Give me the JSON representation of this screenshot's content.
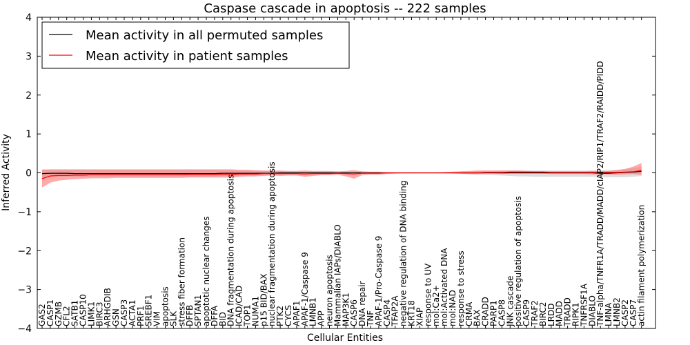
{
  "chart_data": {
    "type": "line",
    "title": "Caspase cascade in apoptosis -- 222 samples",
    "xlabel": "Cellular Entities",
    "ylabel": "Inferred Activity",
    "ylim": [
      -4,
      4
    ],
    "yticks": [
      -4,
      -3,
      -2,
      -1,
      0,
      1,
      2,
      3,
      4
    ],
    "grid": false,
    "legend_position": "top-left",
    "colors": {
      "permuted": "#000000",
      "patient": "#ff0000",
      "permuted_band": "#c8c8c8",
      "patient_band": "#ff7070"
    },
    "categories": [
      "GAS2",
      "CASP1",
      "GZMB",
      "CFL2",
      "SATB1",
      "CASP10",
      "LIMK1",
      "BIRC3",
      "ARHGDIB",
      "GSN",
      "CASP3",
      "ACTA1",
      "PRF1",
      "SREBF1",
      "VIM",
      "apoptosis",
      "SLK",
      "stress fiber formation",
      "DFFB",
      "SPTAN1",
      "apoptotic nuclear changes",
      "DFFA",
      "BID",
      "DNA fragmentation during apoptosis",
      "ICAD/CAD",
      "TOP1",
      "NUMA1",
      "p15 BID/BAX",
      "nuclear fragmentation during apoptosis",
      "PTK2",
      "CYCS",
      "APAF1",
      "APAF-1/Caspase 9",
      "LMNB1",
      "APP",
      "neuron apoptosis",
      "Mammalian IAPs/DIABLO",
      "MAP3K1",
      "CASP6",
      "DNA repair",
      "TNF",
      "APAF-1/Pro-Caspase 9",
      "CASP4",
      "TFAP2A",
      "negative regulation of DNA binding",
      "KRT18",
      "XIAP",
      "response to UV",
      "mol:Ca2+",
      "mol:Activated DNA",
      "mol:NAD",
      "response to stress",
      "CRMA",
      "BAX",
      "CRADD",
      "PARP1",
      "CASP8",
      "JNK cascade",
      "positive regulation of apoptosis",
      "CASP9",
      "TRAF2",
      "BIRC2",
      "LRDD",
      "MADD",
      "TRADD",
      "RIPK1",
      "TNFRSF1A",
      "DIABLO",
      "TNF-alpha/TNFR1A/TRADD/MADD/cIAP2/RIP1/TRAF2/RAIDD/PIDD",
      "LMNA",
      "LMNB2",
      "CASP2",
      "CASP7",
      "actin filament polymerization"
    ],
    "series": [
      {
        "name": "Mean activity in all permuted samples",
        "values": [
          -0.02,
          -0.01,
          -0.01,
          -0.01,
          -0.02,
          -0.02,
          -0.02,
          -0.02,
          -0.02,
          -0.02,
          -0.02,
          -0.02,
          -0.02,
          -0.02,
          -0.02,
          -0.02,
          -0.02,
          -0.02,
          -0.02,
          -0.02,
          -0.02,
          -0.02,
          -0.01,
          -0.01,
          -0.01,
          -0.01,
          -0.01,
          -0.01,
          -0.01,
          0,
          0,
          0,
          0,
          0,
          0,
          0,
          0,
          0,
          0,
          0,
          0,
          0,
          0,
          0,
          0,
          0,
          0,
          0,
          0,
          0,
          0,
          0,
          0,
          0,
          0,
          0,
          0,
          0,
          0,
          0,
          0,
          0,
          0,
          0,
          0,
          0,
          0,
          0,
          -0.01,
          -0.01,
          0,
          0.01,
          0.02,
          0.04
        ],
        "lower": [
          -0.14,
          -0.1,
          -0.1,
          -0.1,
          -0.1,
          -0.1,
          -0.1,
          -0.1,
          -0.1,
          -0.1,
          -0.1,
          -0.1,
          -0.1,
          -0.1,
          -0.1,
          -0.1,
          -0.1,
          -0.1,
          -0.1,
          -0.1,
          -0.09,
          -0.09,
          -0.08,
          -0.08,
          -0.07,
          -0.06,
          -0.06,
          -0.05,
          -0.04,
          -0.04,
          -0.03,
          -0.03,
          -0.03,
          -0.03,
          -0.03,
          -0.02,
          -0.02,
          -0.02,
          -0.02,
          -0.02,
          -0.02,
          -0.02,
          -0.01,
          -0.01,
          -0.01,
          -0.01,
          -0.01,
          -0.01,
          -0.01,
          -0.01,
          -0.02,
          -0.03,
          -0.04,
          -0.05,
          -0.06,
          -0.06,
          -0.07,
          -0.08,
          -0.09,
          -0.09,
          -0.1,
          -0.1,
          -0.1,
          -0.1,
          -0.1,
          -0.1,
          -0.1,
          -0.1,
          -0.11,
          -0.11,
          -0.11,
          -0.11,
          -0.1,
          -0.08
        ],
        "upper": [
          0.09,
          0.08,
          0.08,
          0.08,
          0.08,
          0.08,
          0.08,
          0.08,
          0.08,
          0.08,
          0.08,
          0.08,
          0.08,
          0.08,
          0.08,
          0.08,
          0.08,
          0.08,
          0.08,
          0.08,
          0.08,
          0.08,
          0.07,
          0.07,
          0.06,
          0.06,
          0.05,
          0.05,
          0.04,
          0.04,
          0.03,
          0.03,
          0.03,
          0.03,
          0.02,
          0.02,
          0.02,
          0.02,
          0.02,
          0.02,
          0.02,
          0.02,
          0.01,
          0.01,
          0.01,
          0.01,
          0.01,
          0.01,
          0.01,
          0.01,
          0.02,
          0.03,
          0.03,
          0.04,
          0.05,
          0.05,
          0.06,
          0.06,
          0.06,
          0.06,
          0.06,
          0.06,
          0.06,
          0.06,
          0.06,
          0.06,
          0.06,
          0.06,
          0.06,
          0.07,
          0.08,
          0.1,
          0.12,
          0.16
        ]
      },
      {
        "name": "Mean activity in patient samples",
        "values": [
          -0.15,
          -0.08,
          -0.07,
          -0.07,
          -0.06,
          -0.06,
          -0.05,
          -0.05,
          -0.05,
          -0.05,
          -0.05,
          -0.05,
          -0.05,
          -0.05,
          -0.05,
          -0.05,
          -0.05,
          -0.05,
          -0.04,
          -0.04,
          -0.04,
          -0.04,
          -0.04,
          -0.04,
          -0.03,
          -0.03,
          -0.03,
          -0.02,
          -0.02,
          -0.02,
          -0.02,
          -0.02,
          -0.03,
          -0.02,
          -0.02,
          -0.02,
          -0.01,
          -0.02,
          -0.03,
          -0.01,
          -0.01,
          -0.01,
          0,
          0,
          0,
          0,
          0,
          0,
          0,
          0,
          0,
          0,
          0,
          0,
          0.01,
          0.01,
          0.01,
          0.02,
          0.02,
          0.02,
          0.02,
          0.02,
          0.01,
          0.01,
          0.01,
          0.01,
          0.01,
          0.01,
          0.01,
          0.01,
          0.01,
          0.02,
          0.03,
          0.06
        ],
        "lower": [
          -0.38,
          -0.25,
          -0.2,
          -0.18,
          -0.16,
          -0.15,
          -0.14,
          -0.14,
          -0.14,
          -0.13,
          -0.13,
          -0.13,
          -0.13,
          -0.13,
          -0.13,
          -0.13,
          -0.13,
          -0.13,
          -0.12,
          -0.12,
          -0.12,
          -0.12,
          -0.12,
          -0.12,
          -0.1,
          -0.09,
          -0.09,
          -0.08,
          -0.07,
          -0.08,
          -0.07,
          -0.07,
          -0.1,
          -0.08,
          -0.06,
          -0.06,
          -0.05,
          -0.09,
          -0.15,
          -0.06,
          -0.05,
          -0.05,
          -0.03,
          -0.02,
          -0.01,
          -0.01,
          0,
          0,
          0,
          0,
          -0.01,
          -0.02,
          -0.03,
          -0.03,
          -0.02,
          -0.02,
          -0.03,
          -0.02,
          -0.02,
          -0.02,
          -0.02,
          -0.02,
          -0.03,
          -0.03,
          -0.03,
          -0.03,
          -0.03,
          -0.04,
          -0.04,
          -0.04,
          -0.05,
          -0.04,
          -0.03,
          -0.05
        ],
        "upper": [
          0.08,
          0.09,
          0.09,
          0.09,
          0.09,
          0.09,
          0.09,
          0.09,
          0.09,
          0.09,
          0.09,
          0.09,
          0.09,
          0.09,
          0.09,
          0.09,
          0.09,
          0.09,
          0.09,
          0.09,
          0.09,
          0.09,
          0.09,
          0.09,
          0.08,
          0.08,
          0.07,
          0.06,
          0.06,
          0.06,
          0.05,
          0.05,
          0.06,
          0.05,
          0.05,
          0.05,
          0.04,
          0.05,
          0.07,
          0.04,
          0.03,
          0.03,
          0.02,
          0.01,
          0.01,
          0.01,
          0.01,
          0.01,
          0.01,
          0.02,
          0.03,
          0.04,
          0.05,
          0.06,
          0.06,
          0.06,
          0.06,
          0.06,
          0.06,
          0.05,
          0.04,
          0.04,
          0.04,
          0.04,
          0.04,
          0.04,
          0.04,
          0.05,
          0.05,
          0.05,
          0.07,
          0.1,
          0.16,
          0.25
        ]
      }
    ]
  }
}
